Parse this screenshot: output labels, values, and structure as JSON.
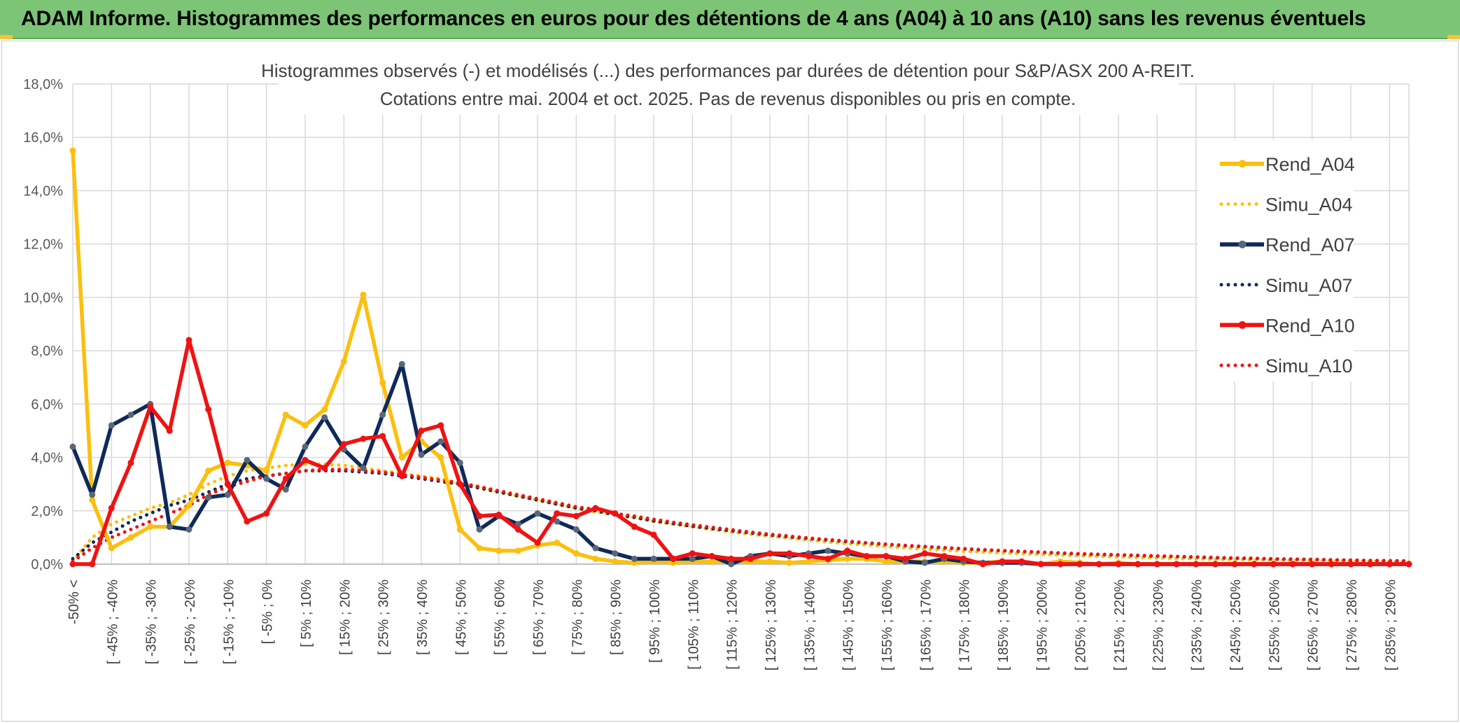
{
  "banner": {
    "title": "ADAM Informe. Histogrammes des performances en euros pour des détentions de 4 ans (A04) à 10 ans (A10) sans les revenus éventuels"
  },
  "colors": {
    "banner_bg": "#7cc576",
    "a04": "#fbbf0e",
    "a07": "#0e2a5a",
    "a07_marker": "#5b6778",
    "a10": "#f01212",
    "grid": "#d9d9d9"
  },
  "chart_data": {
    "type": "line",
    "title": "Histogrammes observés (-) et modélisés (...) des performances par durées de détention pour S&P/ASX 200 A-REIT.",
    "subtitle": "Cotations entre mai. 2004 et oct. 2025. Pas de revenus disponibles ou pris en compte.",
    "ylim": [
      0,
      18
    ],
    "yticks": [
      "0,0%",
      "2,0%",
      "4,0%",
      "6,0%",
      "8,0%",
      "10,0%",
      "12,0%",
      "14,0%",
      "16,0%",
      "18,0%"
    ],
    "grid": true,
    "legend_position": "right",
    "x_labels": [
      "-50% <",
      "[ -45% ; -40%",
      "[ -35% ; -30%",
      "[ -25% ; -20%",
      "[ -15% ; -10%",
      "[ -5% ; 0%",
      "[ 5% ; 10%",
      "[ 15% ; 20%",
      "[ 25% ; 30%",
      "[ 35% ; 40%",
      "[ 45% ; 50%",
      "[ 55% ; 60%",
      "[ 65% ; 70%",
      "[ 75% ; 80%",
      "[ 85% ; 90%",
      "[ 95% ; 100%",
      "[ 105% ; 110%",
      "[ 115% ; 120%",
      "[ 125% ; 130%",
      "[ 135% ; 140%",
      "[ 145% ; 150%",
      "[ 155% ; 160%",
      "[ 165% ; 170%",
      "[ 175% ; 180%",
      "[ 185% ; 190%",
      "[ 195% ; 200%",
      "[ 205% ; 210%",
      "[ 215% ; 220%",
      "[ 225% ; 230%",
      "[ 235% ; 240%",
      "[ 245% ; 250%",
      "[ 255% ; 260%",
      "[ 265% ; 270%",
      "[ 275% ; 280%",
      "[ 285% ; 290%"
    ],
    "series": [
      {
        "name": "Rend_A04",
        "style": "solid",
        "color": "#fbbf0e",
        "values": [
          15.5,
          2.4,
          0.6,
          1.0,
          1.4,
          1.4,
          2.2,
          3.5,
          3.8,
          3.7,
          3.5,
          5.6,
          5.2,
          5.8,
          7.6,
          10.1,
          6.8,
          4.0,
          4.6,
          4.0,
          1.3,
          0.6,
          0.5,
          0.5,
          0.7,
          0.8,
          0.4,
          0.2,
          0.1,
          0.05,
          0.1,
          0.05,
          0.1,
          0.1,
          0.1,
          0.1,
          0.1,
          0.05,
          0.1,
          0.15,
          0.2,
          0.2,
          0.1,
          0.1,
          0.1,
          0.1,
          0.05,
          0.05,
          0.1,
          0.05,
          0.0,
          0.1,
          0.05,
          0.0,
          0.05,
          0.0,
          0.0,
          0.0,
          0.0,
          0.0,
          0.0,
          0.0,
          0.0,
          0.0,
          0.0,
          0.0,
          0.0,
          0.0,
          0.0,
          0.0
        ]
      },
      {
        "name": "Simu_A04",
        "style": "dotted",
        "color": "#fbbf0e",
        "values": [
          0.1,
          1.0,
          1.5,
          1.8,
          2.1,
          2.3,
          2.6,
          3.0,
          3.3,
          3.5,
          3.6,
          3.7,
          3.75,
          3.75,
          3.7,
          3.6,
          3.5,
          3.4,
          3.3,
          3.2,
          3.0,
          2.9,
          2.7,
          2.55,
          2.4,
          2.25,
          2.1,
          1.95,
          1.85,
          1.75,
          1.6,
          1.5,
          1.4,
          1.3,
          1.2,
          1.12,
          1.05,
          0.97,
          0.9,
          0.83,
          0.77,
          0.72,
          0.66,
          0.61,
          0.56,
          0.52,
          0.48,
          0.45,
          0.42,
          0.39,
          0.36,
          0.34,
          0.31,
          0.29,
          0.27,
          0.25,
          0.23,
          0.21,
          0.2,
          0.18,
          0.17,
          0.16,
          0.15,
          0.14,
          0.13,
          0.12,
          0.11,
          0.1,
          0.09,
          0.08
        ]
      },
      {
        "name": "Rend_A07",
        "style": "solid",
        "color": "#0e2a5a",
        "values": [
          4.4,
          2.6,
          5.2,
          5.6,
          6.0,
          1.4,
          1.3,
          2.5,
          2.6,
          3.9,
          3.2,
          2.8,
          4.4,
          5.5,
          4.3,
          3.6,
          5.6,
          7.5,
          4.1,
          4.6,
          3.8,
          1.3,
          1.8,
          1.5,
          1.9,
          1.6,
          1.3,
          0.6,
          0.4,
          0.2,
          0.2,
          0.2,
          0.2,
          0.3,
          0.0,
          0.3,
          0.4,
          0.3,
          0.4,
          0.5,
          0.4,
          0.3,
          0.3,
          0.1,
          0.05,
          0.2,
          0.1,
          0.05,
          0.05,
          0.05,
          0.0,
          0.0,
          0.0,
          0.0,
          0.0,
          0.0,
          0.0,
          0.0,
          0.0,
          0.0,
          0.0,
          0.0,
          0.0,
          0.0,
          0.0,
          0.0,
          0.0,
          0.0,
          0.0,
          0.0
        ]
      },
      {
        "name": "Simu_A07",
        "style": "dotted",
        "color": "#0e2a5a",
        "values": [
          0.2,
          0.8,
          1.2,
          1.6,
          1.9,
          2.2,
          2.4,
          2.7,
          3.0,
          3.2,
          3.3,
          3.4,
          3.5,
          3.5,
          3.5,
          3.45,
          3.4,
          3.3,
          3.2,
          3.1,
          3.0,
          2.85,
          2.7,
          2.55,
          2.4,
          2.25,
          2.1,
          2.0,
          1.85,
          1.75,
          1.62,
          1.52,
          1.42,
          1.33,
          1.25,
          1.17,
          1.09,
          1.02,
          0.96,
          0.9,
          0.84,
          0.79,
          0.74,
          0.69,
          0.65,
          0.61,
          0.57,
          0.53,
          0.5,
          0.47,
          0.44,
          0.41,
          0.38,
          0.36,
          0.34,
          0.32,
          0.3,
          0.28,
          0.26,
          0.24,
          0.22,
          0.21,
          0.19,
          0.18,
          0.17,
          0.16,
          0.14,
          0.13,
          0.12,
          0.11
        ]
      },
      {
        "name": "Rend_A10",
        "style": "solid",
        "color": "#f01212",
        "values": [
          0.0,
          0.0,
          2.1,
          3.8,
          5.9,
          5.0,
          8.4,
          5.8,
          3.0,
          1.6,
          1.9,
          3.2,
          3.9,
          3.6,
          4.5,
          4.7,
          4.8,
          3.3,
          5.0,
          5.2,
          3.0,
          1.8,
          1.85,
          1.3,
          0.8,
          1.9,
          1.8,
          2.1,
          1.9,
          1.4,
          1.1,
          0.2,
          0.4,
          0.3,
          0.2,
          0.2,
          0.4,
          0.4,
          0.3,
          0.2,
          0.5,
          0.3,
          0.3,
          0.2,
          0.4,
          0.3,
          0.2,
          0.0,
          0.1,
          0.1,
          0.0,
          0.0,
          0.0,
          0.0,
          0.0,
          0.0,
          0.0,
          0.0,
          0.0,
          0.0,
          0.0,
          0.0,
          0.0,
          0.0,
          0.0,
          0.0,
          0.0,
          0.0,
          0.0,
          0.0
        ]
      },
      {
        "name": "Simu_A10",
        "style": "dotted",
        "color": "#f01212",
        "values": [
          0.1,
          0.6,
          1.0,
          1.3,
          1.6,
          1.9,
          2.2,
          2.6,
          2.9,
          3.1,
          3.3,
          3.4,
          3.5,
          3.55,
          3.55,
          3.5,
          3.45,
          3.35,
          3.25,
          3.15,
          3.05,
          2.9,
          2.75,
          2.6,
          2.45,
          2.3,
          2.15,
          2.05,
          1.9,
          1.8,
          1.68,
          1.57,
          1.47,
          1.38,
          1.29,
          1.2,
          1.12,
          1.05,
          0.98,
          0.92,
          0.86,
          0.8,
          0.75,
          0.7,
          0.66,
          0.62,
          0.58,
          0.54,
          0.51,
          0.48,
          0.45,
          0.42,
          0.39,
          0.37,
          0.35,
          0.33,
          0.31,
          0.29,
          0.27,
          0.25,
          0.23,
          0.22,
          0.2,
          0.19,
          0.18,
          0.16,
          0.15,
          0.14,
          0.13,
          0.12
        ]
      }
    ]
  }
}
